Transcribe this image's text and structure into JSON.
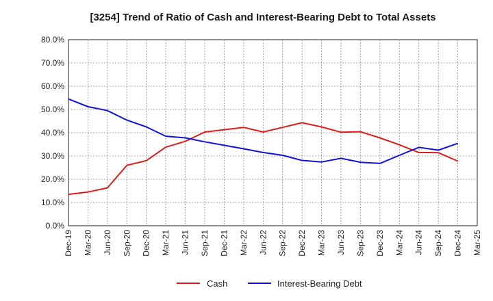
{
  "chart_data": {
    "type": "line",
    "title": "[3254]  Trend of Ratio of Cash and Interest-Bearing Debt to Total Assets",
    "xlabel": "",
    "ylabel": "",
    "ylim": [
      0,
      80
    ],
    "y_ticks": [
      "0.0%",
      "10.0%",
      "20.0%",
      "30.0%",
      "40.0%",
      "50.0%",
      "60.0%",
      "70.0%",
      "80.0%"
    ],
    "categories": [
      "Dec-19",
      "Mar-20",
      "Jun-20",
      "Sep-20",
      "Dec-20",
      "Mar-21",
      "Jun-21",
      "Sep-21",
      "Dec-21",
      "Mar-22",
      "Jun-22",
      "Sep-22",
      "Dec-22",
      "Mar-23",
      "Jun-23",
      "Sep-23",
      "Dec-23",
      "Mar-24",
      "Jun-24",
      "Sep-24",
      "Dec-24",
      "Mar-25"
    ],
    "grid": true,
    "legend_position": "bottom",
    "series": [
      {
        "name": "Cash",
        "color": "#e31a1a",
        "values": [
          13.5,
          14.5,
          16.3,
          26.0,
          28.0,
          33.8,
          36.3,
          40.3,
          41.3,
          42.3,
          40.3,
          42.3,
          44.3,
          42.5,
          40.2,
          40.4,
          37.8,
          34.8,
          31.5,
          31.4,
          27.8,
          null
        ]
      },
      {
        "name": "Interest-Bearing Debt",
        "color": "#1010e0",
        "values": [
          54.5,
          51.2,
          49.5,
          45.4,
          42.5,
          38.5,
          37.8,
          36.1,
          34.6,
          33.1,
          31.5,
          30.3,
          28.1,
          27.4,
          29.0,
          27.3,
          26.8,
          30.3,
          33.7,
          32.5,
          35.4,
          null
        ]
      }
    ]
  }
}
